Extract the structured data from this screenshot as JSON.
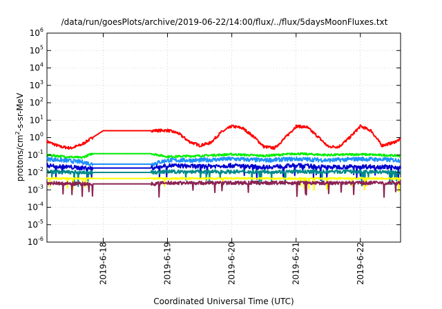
{
  "chart_data": {
    "type": "line",
    "title": "/data/run/goesPlots/archive/2019-06-22/14:00/flux/../flux/5daysMoonFluxes.txt",
    "xlabel": "Coordinated Universal Time (UTC)",
    "ylabel": {
      "pre": "protons/cm",
      "sup": "2",
      "post": "-s-sr-MeV"
    },
    "yscale": "log",
    "ylim": [
      1e-06,
      1000000.0
    ],
    "xlim": [
      "2019-06-17T03:00",
      "2019-06-22T15:00"
    ],
    "grid": true,
    "legend": "none",
    "yticks": [
      {
        "value": 1e-06,
        "base": "10",
        "exp": "-6"
      },
      {
        "value": 1e-05,
        "base": "10",
        "exp": "-5"
      },
      {
        "value": 0.0001,
        "base": "10",
        "exp": "-4"
      },
      {
        "value": 0.001,
        "base": "10",
        "exp": "-3"
      },
      {
        "value": 0.01,
        "base": "10",
        "exp": "-2"
      },
      {
        "value": 0.1,
        "base": "10",
        "exp": "-1"
      },
      {
        "value": 1.0,
        "base": "10",
        "exp": "0"
      },
      {
        "value": 10.0,
        "base": "10",
        "exp": "1"
      },
      {
        "value": 100.0,
        "base": "10",
        "exp": "2"
      },
      {
        "value": 1000.0,
        "base": "10",
        "exp": "3"
      },
      {
        "value": 10000.0,
        "base": "10",
        "exp": "4"
      },
      {
        "value": 100000.0,
        "base": "10",
        "exp": "5"
      },
      {
        "value": 1000000.0,
        "base": "10",
        "exp": "6"
      }
    ],
    "xticks": [
      {
        "value": "2019-06-18T00:00",
        "label": "2019-6-18"
      },
      {
        "value": "2019-06-19T00:00",
        "label": "2019-6-19"
      },
      {
        "value": "2019-06-20T00:00",
        "label": "2019-6-20"
      },
      {
        "value": "2019-06-21T00:00",
        "label": "2019-6-21"
      },
      {
        "value": "2019-06-22T00:00",
        "label": "2019-6-22"
      }
    ],
    "series": [
      {
        "color": "#ff0000",
        "noise": 0.08,
        "x": [
          "2019-06-17T03:00",
          "2019-06-17T08:00",
          "2019-06-17T12:00",
          "2019-06-17T16:00",
          "2019-06-17T20:00",
          "2019-06-18T00:00",
          "2019-06-18T12:00",
          "2019-06-18T18:00",
          "2019-06-19T00:00",
          "2019-06-19T04:00",
          "2019-06-19T08:00",
          "2019-06-19T12:00",
          "2019-06-19T16:00",
          "2019-06-19T20:00",
          "2019-06-20T00:00",
          "2019-06-20T04:00",
          "2019-06-20T08:00",
          "2019-06-20T12:00",
          "2019-06-20T16:00",
          "2019-06-20T20:00",
          "2019-06-21T00:00",
          "2019-06-21T04:00",
          "2019-06-21T08:00",
          "2019-06-21T12:00",
          "2019-06-21T16:00",
          "2019-06-21T20:00",
          "2019-06-22T00:00",
          "2019-06-22T04:00",
          "2019-06-22T08:00",
          "2019-06-22T12:00",
          "2019-06-22T15:00"
        ],
        "y": [
          0.6,
          0.3,
          0.25,
          0.4,
          1.0,
          2.5,
          2.5,
          2.5,
          2.6,
          1.8,
          0.6,
          0.35,
          0.5,
          2.0,
          4.5,
          3.5,
          1.2,
          0.3,
          0.25,
          1.0,
          4.5,
          4.0,
          1.2,
          0.3,
          0.3,
          1.0,
          4.5,
          2.5,
          0.35,
          0.5,
          0.8
        ]
      },
      {
        "color": "#00ee00",
        "noise": 0.06,
        "x": [
          "2019-06-17T03:00",
          "2019-06-17T10:00",
          "2019-06-17T16:00",
          "2019-06-17T20:00",
          "2019-06-18T06:00",
          "2019-06-18T18:00",
          "2019-06-19T00:00",
          "2019-06-19T12:00",
          "2019-06-20T00:00",
          "2019-06-20T12:00",
          "2019-06-21T00:00",
          "2019-06-21T12:00",
          "2019-06-22T00:00",
          "2019-06-22T15:00"
        ],
        "y": [
          0.1,
          0.08,
          0.07,
          0.12,
          0.12,
          0.12,
          0.08,
          0.09,
          0.11,
          0.09,
          0.12,
          0.1,
          0.11,
          0.09
        ]
      },
      {
        "color": "#1e90ff",
        "noise": 0.12,
        "x": [
          "2019-06-17T03:00",
          "2019-06-17T16:00",
          "2019-06-17T20:00",
          "2019-06-18T18:00",
          "2019-06-19T00:00",
          "2019-06-19T12:00",
          "2019-06-20T00:00",
          "2019-06-20T12:00",
          "2019-06-21T00:00",
          "2019-06-21T12:00",
          "2019-06-22T00:00",
          "2019-06-22T15:00"
        ],
        "y": [
          0.06,
          0.04,
          0.03,
          0.03,
          0.05,
          0.05,
          0.06,
          0.05,
          0.06,
          0.05,
          0.06,
          0.05
        ]
      },
      {
        "color": "#0000cc",
        "noise": 0.12,
        "x": [
          "2019-06-17T03:00",
          "2019-06-17T16:00",
          "2019-06-17T20:00",
          "2019-06-18T18:00",
          "2019-06-19T00:00",
          "2019-06-19T12:00",
          "2019-06-20T00:00",
          "2019-06-20T12:00",
          "2019-06-21T00:00",
          "2019-06-21T12:00",
          "2019-06-22T00:00",
          "2019-06-22T15:00"
        ],
        "y": [
          0.025,
          0.018,
          0.018,
          0.018,
          0.025,
          0.022,
          0.025,
          0.02,
          0.025,
          0.02,
          0.022,
          0.02
        ]
      },
      {
        "color": "#008b8b",
        "noise": 0.1,
        "x": [
          "2019-06-17T03:00",
          "2019-06-17T16:00",
          "2019-06-17T20:00",
          "2019-06-18T18:00",
          "2019-06-19T00:00",
          "2019-06-20T00:00",
          "2019-06-21T00:00",
          "2019-06-22T00:00",
          "2019-06-22T15:00"
        ],
        "y": [
          0.011,
          0.01,
          0.01,
          0.01,
          0.011,
          0.011,
          0.011,
          0.011,
          0.01
        ]
      },
      {
        "color": "#ffff00",
        "noise": 0.05,
        "x": [
          "2019-06-17T03:00",
          "2019-06-18T00:00",
          "2019-06-19T00:00",
          "2019-06-20T00:00",
          "2019-06-21T00:00",
          "2019-06-22T00:00",
          "2019-06-22T15:00"
        ],
        "y": [
          0.0045,
          0.0045,
          0.0045,
          0.0045,
          0.0045,
          0.0045,
          0.0045
        ]
      },
      {
        "color": "#8b2252",
        "noise": 0.1,
        "x": [
          "2019-06-17T03:00",
          "2019-06-17T16:00",
          "2019-06-18T18:00",
          "2019-06-19T00:00",
          "2019-06-20T00:00",
          "2019-06-21T00:00",
          "2019-06-22T00:00",
          "2019-06-22T15:00"
        ],
        "y": [
          0.0025,
          0.0022,
          0.0022,
          0.0025,
          0.0025,
          0.0025,
          0.0025,
          0.0025
        ]
      }
    ]
  }
}
